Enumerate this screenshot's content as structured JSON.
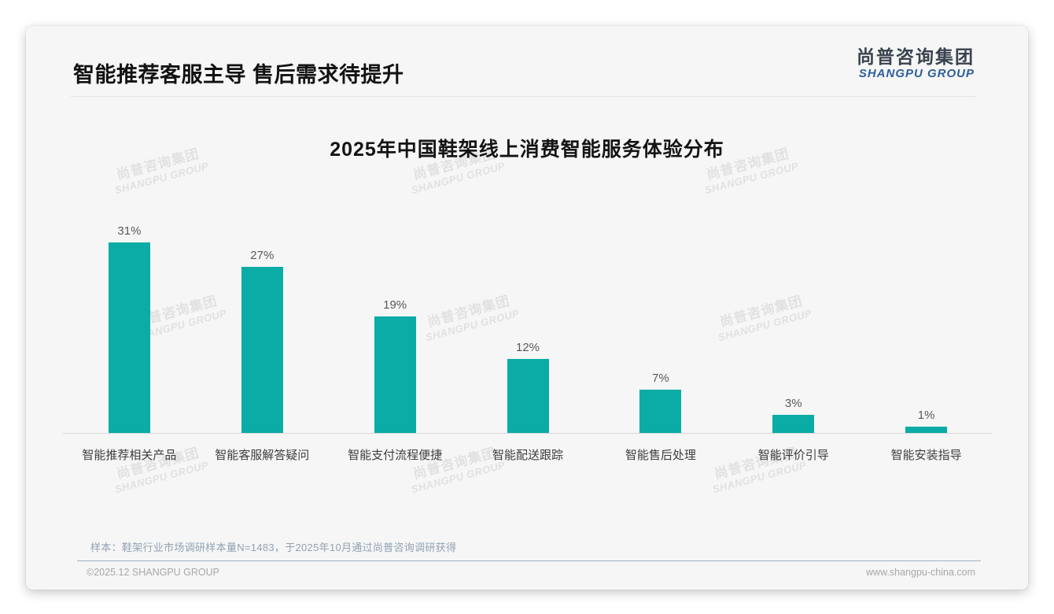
{
  "page": {
    "header": {
      "title": "智能推荐客服主导 售后需求待提升"
    },
    "logo": {
      "cn": "尚普咨询集团",
      "en": "SHANGPU GROUP"
    },
    "watermark": {
      "cn": "尚普咨询集团",
      "en": "SHANGPU GROUP"
    },
    "footnote": "样本：鞋架行业市场调研样本量N=1483，于2025年10月通过尚普咨询调研获得",
    "footer": {
      "left": "©2025.12 SHANGPU GROUP",
      "right": "www.shangpu-china.com"
    }
  },
  "colors": {
    "bar": "#0aaca5",
    "card_bg": "#f5f6f5",
    "logo_en_blue": "#2e5f9c",
    "footnote_text": "#93a2b4",
    "divider_blue": "#9db1c6",
    "axis_line": "#d8d8d8"
  },
  "chart_data": {
    "type": "bar",
    "title": "2025年中国鞋架线上消费智能服务体验分布",
    "categories": [
      "智能推荐相关产品",
      "智能客服解答疑问",
      "智能支付流程便捷",
      "智能配送跟踪",
      "智能售后处理",
      "智能评价引导",
      "智能安装指导"
    ],
    "values": [
      31,
      27,
      19,
      12,
      7,
      3,
      1
    ],
    "value_labels": [
      "31%",
      "27%",
      "19%",
      "12%",
      "7%",
      "3%",
      "1%"
    ],
    "xlabel": "",
    "ylabel": "",
    "ylim": [
      0,
      35
    ],
    "grid": false,
    "legend": "none",
    "y_axis": "hidden",
    "value_label_position": "above-bar",
    "bar_color": "#0aaca5"
  }
}
